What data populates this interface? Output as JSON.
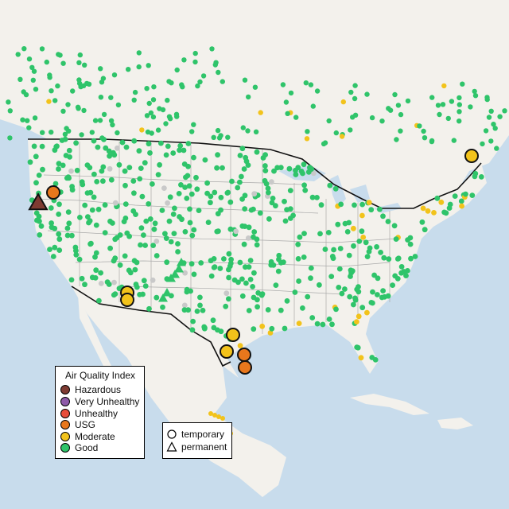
{
  "legend": {
    "title": "Air Quality Index",
    "categories": [
      {
        "label": "Hazardous",
        "color": "#7e3b32"
      },
      {
        "label": "Very Unhealthy",
        "color": "#8e5aa8"
      },
      {
        "label": "Unhealthy",
        "color": "#e84d3a"
      },
      {
        "label": "USG",
        "color": "#e8771c"
      },
      {
        "label": "Moderate",
        "color": "#f2c31b"
      },
      {
        "label": "Good",
        "color": "#2fc46a"
      }
    ]
  },
  "monitor_types": [
    {
      "label": "temporary",
      "symbol": "circle"
    },
    {
      "label": "permanent",
      "symbol": "triangle"
    }
  ],
  "colors": {
    "water": "#c8dcec",
    "land": "#f3f1ec",
    "border": "#111111",
    "state_lines": "#aaaaaa",
    "no_data": "#c9c9c9"
  }
}
